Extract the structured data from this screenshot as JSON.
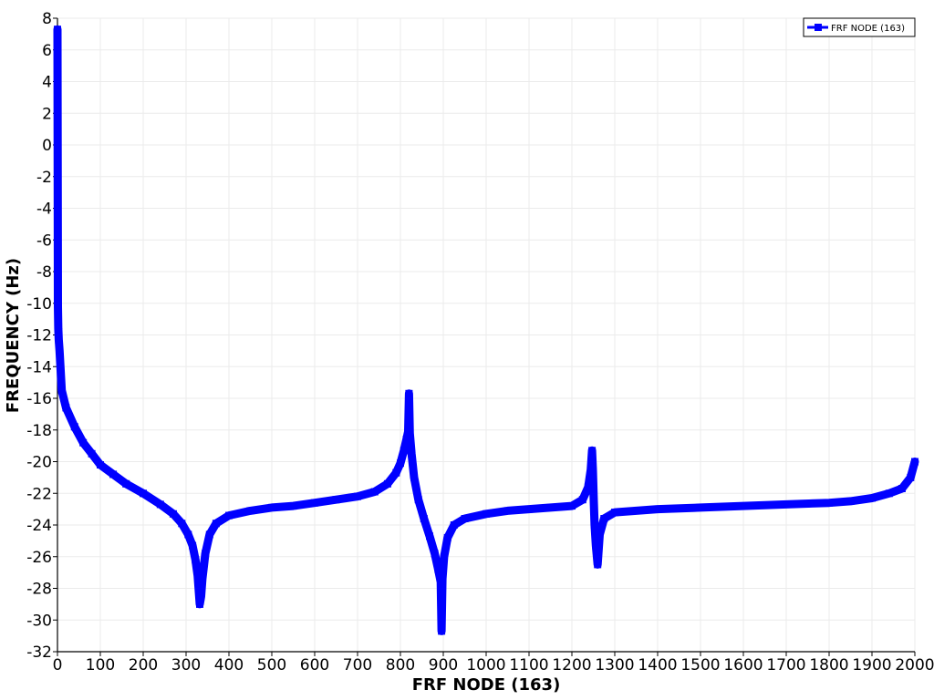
{
  "chart_data": {
    "type": "line",
    "title": "",
    "xlabel": "FRF NODE (163)",
    "ylabel": "FREQUENCY (Hz)",
    "xlim": [
      0,
      2000
    ],
    "ylim": [
      -32,
      8
    ],
    "x_ticks": [
      "0",
      "100",
      "200",
      "300",
      "400",
      "500",
      "600",
      "700",
      "800",
      "900",
      "1000",
      "1100",
      "1200",
      "1300",
      "1400",
      "1500",
      "1600",
      "1700",
      "1800",
      "1900",
      "2000"
    ],
    "y_ticks": [
      "8",
      "6",
      "4",
      "2",
      "0",
      "-2",
      "-4",
      "-6",
      "-8",
      "-10",
      "-12",
      "-14",
      "-16",
      "-18",
      "-20",
      "-22",
      "-24",
      "-26",
      "-28",
      "-30",
      "-32"
    ],
    "grid": true,
    "legend_position": "top-right",
    "series": [
      {
        "name": "FRF NODE (163)",
        "color": "#0000ff",
        "marker": "square",
        "x": [
          0,
          1,
          2,
          3,
          5,
          10,
          20,
          40,
          60,
          80,
          100,
          130,
          160,
          200,
          240,
          270,
          290,
          305,
          315,
          322,
          327,
          330,
          332,
          335,
          338,
          345,
          355,
          370,
          400,
          450,
          500,
          550,
          600,
          650,
          700,
          740,
          770,
          790,
          800,
          808,
          814,
          818,
          820,
          822,
          826,
          832,
          842,
          855,
          868,
          880,
          888,
          894,
          896,
          898,
          902,
          910,
          925,
          950,
          1000,
          1050,
          1100,
          1150,
          1200,
          1225,
          1238,
          1244,
          1247,
          1249,
          1251,
          1253,
          1256,
          1260,
          1265,
          1275,
          1300,
          1400,
          1500,
          1600,
          1700,
          1800,
          1850,
          1900,
          1940,
          1970,
          1990,
          2000
        ],
        "y": [
          7.3,
          -10.2,
          -11.6,
          -12.3,
          -13.0,
          -15.5,
          -16.6,
          -17.8,
          -18.8,
          -19.5,
          -20.2,
          -20.8,
          -21.4,
          -22.0,
          -22.7,
          -23.3,
          -23.9,
          -24.6,
          -25.3,
          -26.2,
          -27.2,
          -28.3,
          -29.0,
          -28.5,
          -27.4,
          -25.8,
          -24.6,
          -23.9,
          -23.4,
          -23.1,
          -22.9,
          -22.8,
          -22.6,
          -22.4,
          -22.2,
          -21.9,
          -21.4,
          -20.7,
          -20.1,
          -19.3,
          -18.6,
          -18.1,
          -15.7,
          -18.2,
          -19.5,
          -21.0,
          -22.4,
          -23.6,
          -24.7,
          -25.8,
          -26.8,
          -27.6,
          -30.7,
          -27.4,
          -26.0,
          -24.8,
          -24.0,
          -23.6,
          -23.3,
          -23.1,
          -23.0,
          -22.9,
          -22.8,
          -22.4,
          -21.6,
          -20.5,
          -19.3,
          -20.5,
          -22.5,
          -24.0,
          -25.3,
          -26.5,
          -24.6,
          -23.6,
          -23.2,
          -23.0,
          -22.9,
          -22.8,
          -22.7,
          -22.6,
          -22.5,
          -22.3,
          -22.0,
          -21.7,
          -21.0,
          -20.0
        ]
      }
    ]
  }
}
